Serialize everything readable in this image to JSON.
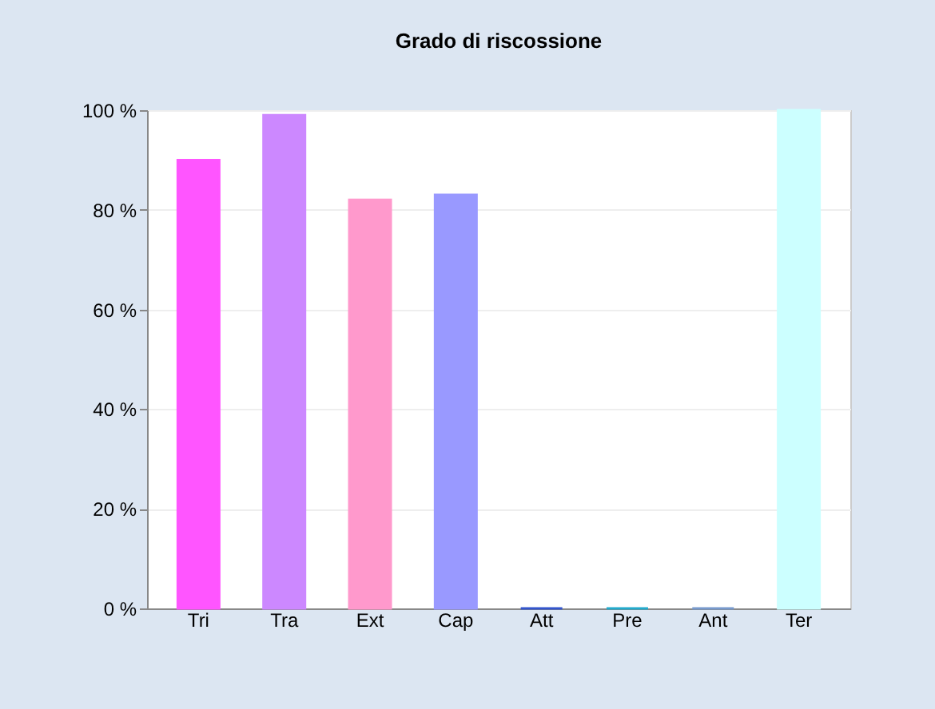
{
  "chart_data": {
    "type": "bar",
    "title": "Grado di riscossione",
    "categories": [
      "Tri",
      "Tra",
      "Ext",
      "Cap",
      "Att",
      "Pre",
      "Ant",
      "Ter"
    ],
    "values": [
      90,
      99,
      82,
      83,
      0,
      0,
      0,
      100
    ],
    "colors": [
      "#ff55ff",
      "#cc88ff",
      "#ff99cc",
      "#9999ff",
      "#3355cc",
      "#22aacc",
      "#7799cc",
      "#ccffff"
    ],
    "ylim": [
      0,
      100
    ],
    "yticks": [
      {
        "value": 0,
        "label": "0 %"
      },
      {
        "value": 20,
        "label": "20 %"
      },
      {
        "value": 40,
        "label": "40 %"
      },
      {
        "value": 60,
        "label": "60 %"
      },
      {
        "value": 80,
        "label": "80 %"
      },
      {
        "value": 100,
        "label": "100 %"
      }
    ],
    "grid": "y"
  }
}
